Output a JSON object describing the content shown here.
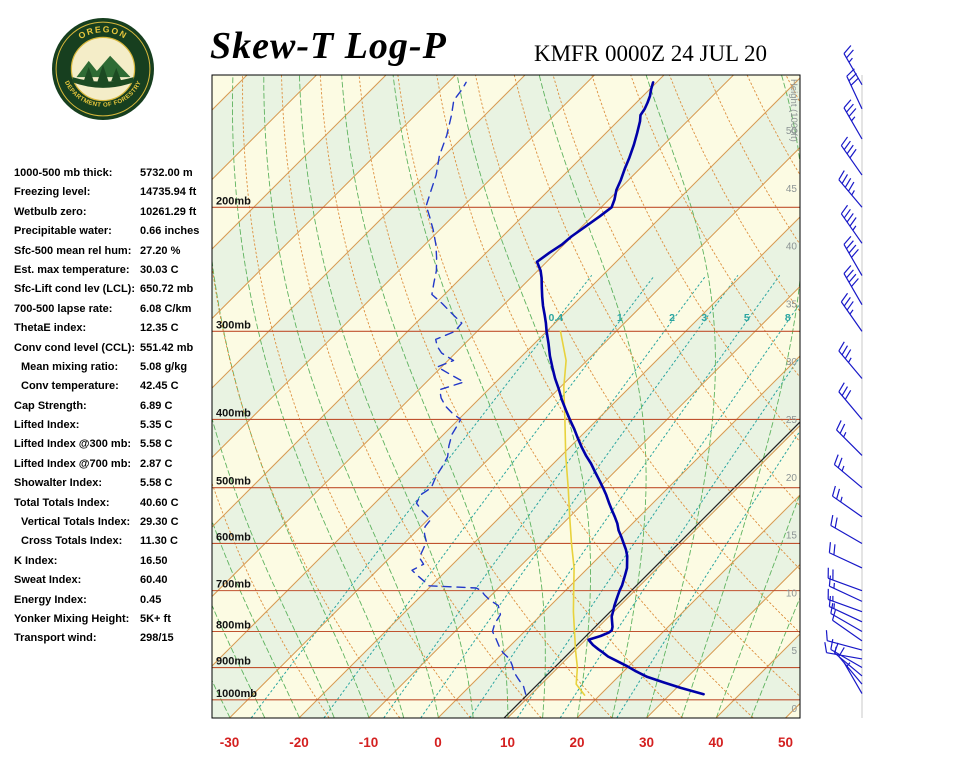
{
  "header": {
    "title": "Skew-T Log-P",
    "station_line": "KMFR 0000Z 24 JUL 20",
    "logo": {
      "top": "OREGON",
      "bottom": "DEPARTMENT OF FORESTRY"
    }
  },
  "indices": [
    {
      "label": "1000-500 mb thick:",
      "value": "5732.00 m",
      "indent": false
    },
    {
      "label": "Freezing level:",
      "value": "14735.94 ft",
      "indent": false
    },
    {
      "label": "Wetbulb zero:",
      "value": "10261.29 ft",
      "indent": false
    },
    {
      "label": "Precipitable water:",
      "value": "0.66 inches",
      "indent": false
    },
    {
      "label": "Sfc-500 mean rel hum:",
      "value": "27.20 %",
      "indent": false
    },
    {
      "label": "Est. max temperature:",
      "value": "30.03 C",
      "indent": false
    },
    {
      "label": "Sfc-Lift cond lev (LCL):",
      "value": "650.72 mb",
      "indent": false
    },
    {
      "label": "700-500 lapse rate:",
      "value": "6.08 C/km",
      "indent": false
    },
    {
      "label": "ThetaE index:",
      "value": "12.35 C",
      "indent": false
    },
    {
      "label": "Conv cond level (CCL):",
      "value": "551.42 mb",
      "indent": false
    },
    {
      "label": "Mean mixing ratio:",
      "value": "5.08 g/kg",
      "indent": true
    },
    {
      "label": "Conv temperature:",
      "value": "42.45 C",
      "indent": true
    },
    {
      "label": "Cap Strength:",
      "value": "6.89 C",
      "indent": false
    },
    {
      "label": "Lifted Index:",
      "value": "5.35 C",
      "indent": false
    },
    {
      "label": "Lifted Index @300 mb:",
      "value": "5.58 C",
      "indent": false
    },
    {
      "label": "Lifted Index @700 mb:",
      "value": "2.87 C",
      "indent": false
    },
    {
      "label": "Showalter Index:",
      "value": "5.58 C",
      "indent": false
    },
    {
      "label": "Total Totals Index:",
      "value": "40.60 C",
      "indent": false
    },
    {
      "label": "Vertical Totals Index:",
      "value": "29.30 C",
      "indent": true
    },
    {
      "label": "Cross Totals Index:",
      "value": "11.30 C",
      "indent": true
    },
    {
      "label": "K Index:",
      "value": "16.50",
      "indent": false
    },
    {
      "label": "Sweat Index:",
      "value": "60.40",
      "indent": false
    },
    {
      "label": "Energy Index:",
      "value": "0.45",
      "indent": false
    },
    {
      "label": "Yonker Mixing Height:",
      "value": "5K+ ft",
      "indent": false
    },
    {
      "label": "Transport wind:",
      "value": "298/15",
      "indent": false
    }
  ],
  "chart_data": {
    "type": "skewt-log-p",
    "pressure_axis": {
      "levels": [
        {
          "p": 200,
          "label": "200mb"
        },
        {
          "p": 300,
          "label": "300mb"
        },
        {
          "p": 400,
          "label": "400mb"
        },
        {
          "p": 500,
          "label": "500mb"
        },
        {
          "p": 600,
          "label": "600mb"
        },
        {
          "p": 700,
          "label": "700mb"
        },
        {
          "p": 800,
          "label": "800mb"
        },
        {
          "p": 900,
          "label": "900mb"
        },
        {
          "p": 1000,
          "label": "1000mb"
        }
      ]
    },
    "temp_axis": {
      "ticks": [
        -30,
        -20,
        -10,
        0,
        10,
        20,
        30,
        40,
        50
      ],
      "units": "C"
    },
    "height_axis": {
      "label": "Height (1000ft)",
      "ticks": [
        50,
        45,
        40,
        35,
        30,
        25,
        20,
        15,
        10,
        5,
        0
      ]
    },
    "mixing_ratio": {
      "values": [
        0.4,
        1,
        2,
        3,
        5,
        8,
        12,
        20
      ],
      "labeled": [
        "0.4",
        "1",
        "2",
        "3",
        "5",
        "8"
      ]
    },
    "isotherms": {
      "min": -120,
      "max": 60,
      "step": 10,
      "highlight": 9.5
    },
    "dry_adiabats": {
      "min": -20,
      "max": 260,
      "step": 10
    },
    "moist_adiabats": {
      "min": -30,
      "max": 45,
      "step": 5
    },
    "temperature_profile": [
      [
        982,
        34.8
      ],
      [
        962,
        30.6
      ],
      [
        945,
        27.4
      ],
      [
        928,
        24.2
      ],
      [
        910,
        21.6
      ],
      [
        895,
        19.6
      ],
      [
        880,
        17.4
      ],
      [
        868,
        15.6
      ],
      [
        856,
        14.2
      ],
      [
        848,
        13.2
      ],
      [
        836,
        11.8
      ],
      [
        828,
        11.0
      ],
      [
        822,
        10.4
      ],
      [
        812,
        11.6
      ],
      [
        803,
        12.3
      ],
      [
        797,
        12.4
      ],
      [
        788,
        12.0
      ],
      [
        775,
        11.2
      ],
      [
        762,
        10.4
      ],
      [
        748,
        9.8
      ],
      [
        735,
        9.2
      ],
      [
        720,
        8.6
      ],
      [
        710,
        8.2
      ],
      [
        700,
        7.8
      ],
      [
        688,
        7.4
      ],
      [
        675,
        6.8
      ],
      [
        662,
        6.2
      ],
      [
        650,
        5.6
      ],
      [
        638,
        4.8
      ],
      [
        625,
        3.9
      ],
      [
        612,
        2.8
      ],
      [
        600,
        1.6
      ],
      [
        588,
        0.4
      ],
      [
        575,
        -1.0
      ],
      [
        562,
        -2.2
      ],
      [
        550,
        -3.5
      ],
      [
        538,
        -4.9
      ],
      [
        525,
        -6.4
      ],
      [
        512,
        -7.9
      ],
      [
        500,
        -9.4
      ],
      [
        488,
        -11.0
      ],
      [
        475,
        -12.8
      ],
      [
        462,
        -14.6
      ],
      [
        450,
        -16.5
      ],
      [
        438,
        -18.3
      ],
      [
        425,
        -20.2
      ],
      [
        412,
        -22.1
      ],
      [
        400,
        -24.0
      ],
      [
        388,
        -25.9
      ],
      [
        375,
        -28.0
      ],
      [
        362,
        -30.0
      ],
      [
        350,
        -32.0
      ],
      [
        338,
        -33.9
      ],
      [
        325,
        -36.0
      ],
      [
        312,
        -38.0
      ],
      [
        300,
        -40.0
      ],
      [
        292,
        -41.3
      ],
      [
        284,
        -42.7
      ],
      [
        276,
        -44.2
      ],
      [
        268,
        -45.6
      ],
      [
        260,
        -47.0
      ],
      [
        252,
        -48.4
      ],
      [
        246,
        -49.6
      ],
      [
        239,
        -51.4
      ],
      [
        232,
        -50.9
      ],
      [
        226,
        -50.3
      ],
      [
        220,
        -50.1
      ],
      [
        213,
        -49.5
      ],
      [
        206,
        -48.9
      ],
      [
        200,
        -48.5
      ],
      [
        195,
        -49.2
      ],
      [
        189,
        -50.3
      ],
      [
        183,
        -51.1
      ],
      [
        176,
        -52.2
      ],
      [
        170,
        -53.1
      ],
      [
        163,
        -54.3
      ],
      [
        157,
        -55.5
      ],
      [
        151,
        -56.8
      ],
      [
        148,
        -57.6
      ],
      [
        145,
        -57.9
      ],
      [
        142,
        -58.4
      ],
      [
        139,
        -59.0
      ],
      [
        136,
        -59.8
      ],
      [
        133,
        -60.5
      ]
    ],
    "dewpoint_profile": [
      [
        982,
        9.2
      ],
      [
        958,
        7.8
      ],
      [
        935,
        6.0
      ],
      [
        912,
        4.2
      ],
      [
        895,
        3.2
      ],
      [
        875,
        1.8
      ],
      [
        858,
        0.0
      ],
      [
        840,
        -1.5
      ],
      [
        820,
        -3.0
      ],
      [
        800,
        -4.6
      ],
      [
        780,
        -5.4
      ],
      [
        757,
        -5.9
      ],
      [
        735,
        -7.5
      ],
      [
        722,
        -9.5
      ],
      [
        710,
        -11.0
      ],
      [
        700,
        -12.1
      ],
      [
        694,
        -13.2
      ],
      [
        689,
        -20.3
      ],
      [
        680,
        -21.5
      ],
      [
        668,
        -23.2
      ],
      [
        655,
        -25.0
      ],
      [
        642,
        -24.2
      ],
      [
        628,
        -25.8
      ],
      [
        612,
        -26.4
      ],
      [
        597,
        -27.0
      ],
      [
        582,
        -28.4
      ],
      [
        568,
        -29.4
      ],
      [
        555,
        -29.6
      ],
      [
        540,
        -32.0
      ],
      [
        526,
        -34.0
      ],
      [
        512,
        -34.6
      ],
      [
        500,
        -34.1
      ],
      [
        483,
        -35.0
      ],
      [
        466,
        -35.6
      ],
      [
        452,
        -36.2
      ],
      [
        436,
        -37.6
      ],
      [
        420,
        -38.8
      ],
      [
        408,
        -39.3
      ],
      [
        400,
        -39.7
      ],
      [
        392,
        -41.8
      ],
      [
        383,
        -43.8
      ],
      [
        373,
        -45.6
      ],
      [
        363,
        -47.0
      ],
      [
        354,
        -44.6
      ],
      [
        345,
        -47.8
      ],
      [
        337,
        -50.6
      ],
      [
        330,
        -49.2
      ],
      [
        322,
        -52.0
      ],
      [
        315,
        -53.6
      ],
      [
        308,
        -54.8
      ],
      [
        300,
        -53.2
      ],
      [
        292,
        -53.4
      ],
      [
        283,
        -56.2
      ],
      [
        274,
        -59.0
      ],
      [
        266,
        -61.8
      ],
      [
        256,
        -63.2
      ],
      [
        246,
        -64.6
      ],
      [
        236,
        -66.4
      ],
      [
        226,
        -68.4
      ],
      [
        215,
        -71.0
      ],
      [
        206,
        -73.4
      ],
      [
        199,
        -75.4
      ],
      [
        190,
        -76.8
      ],
      [
        180,
        -78.4
      ],
      [
        169,
        -80.7
      ],
      [
        158,
        -82.6
      ],
      [
        148,
        -84.8
      ],
      [
        141,
        -86.6
      ],
      [
        136,
        -87.0
      ],
      [
        133,
        -87.4
      ]
    ],
    "wetbulb_profile": [
      [
        985,
        17.8
      ],
      [
        950,
        15.0
      ],
      [
        900,
        12.8
      ],
      [
        850,
        10.0
      ],
      [
        800,
        7.2
      ],
      [
        750,
        4.2
      ],
      [
        700,
        1.2
      ],
      [
        650,
        -2.0
      ],
      [
        600,
        -5.9
      ],
      [
        550,
        -10.0
      ],
      [
        500,
        -14.4
      ],
      [
        450,
        -19.4
      ],
      [
        400,
        -24.7
      ],
      [
        360,
        -29.5
      ],
      [
        330,
        -33.0
      ],
      [
        300,
        -38.0
      ]
    ],
    "winds": [
      [
        980,
        330,
        5
      ],
      [
        950,
        320,
        10
      ],
      [
        925,
        310,
        10
      ],
      [
        900,
        300,
        15
      ],
      [
        875,
        280,
        10
      ],
      [
        850,
        285,
        10
      ],
      [
        825,
        305,
        10
      ],
      [
        800,
        300,
        10
      ],
      [
        775,
        295,
        15
      ],
      [
        750,
        290,
        15
      ],
      [
        725,
        295,
        15
      ],
      [
        700,
        290,
        20
      ],
      [
        650,
        295,
        20
      ],
      [
        600,
        300,
        20
      ],
      [
        550,
        305,
        25
      ],
      [
        500,
        310,
        25
      ],
      [
        450,
        315,
        25
      ],
      [
        400,
        320,
        30
      ],
      [
        350,
        320,
        35
      ],
      [
        300,
        325,
        35
      ],
      [
        275,
        330,
        40
      ],
      [
        250,
        330,
        40
      ],
      [
        225,
        325,
        45
      ],
      [
        200,
        320,
        45
      ],
      [
        180,
        325,
        40
      ],
      [
        160,
        330,
        35
      ],
      [
        145,
        335,
        30
      ],
      [
        134,
        330,
        25
      ]
    ],
    "colors": {
      "band_cream": "#FCFBE3",
      "band_green": "#E9F3E2",
      "isotherm": "#D79A52",
      "isotherm_ref": "#222222",
      "isobar": "#C0522F",
      "dry_adiabat": "#DD8F3E",
      "moist_adiabat": "#5FB35F",
      "mixing_ratio": "#2AA5A0",
      "temperature": "#0000A8",
      "dewpoint": "#2238C8",
      "wetbulb": "#E8D23C",
      "wind_barb": "#1818C8",
      "axis_temp": "#D42020",
      "height_text": "#8C9494",
      "pressure_label": "#111111",
      "staff": "#C8C8C8",
      "border": "#000000"
    }
  }
}
